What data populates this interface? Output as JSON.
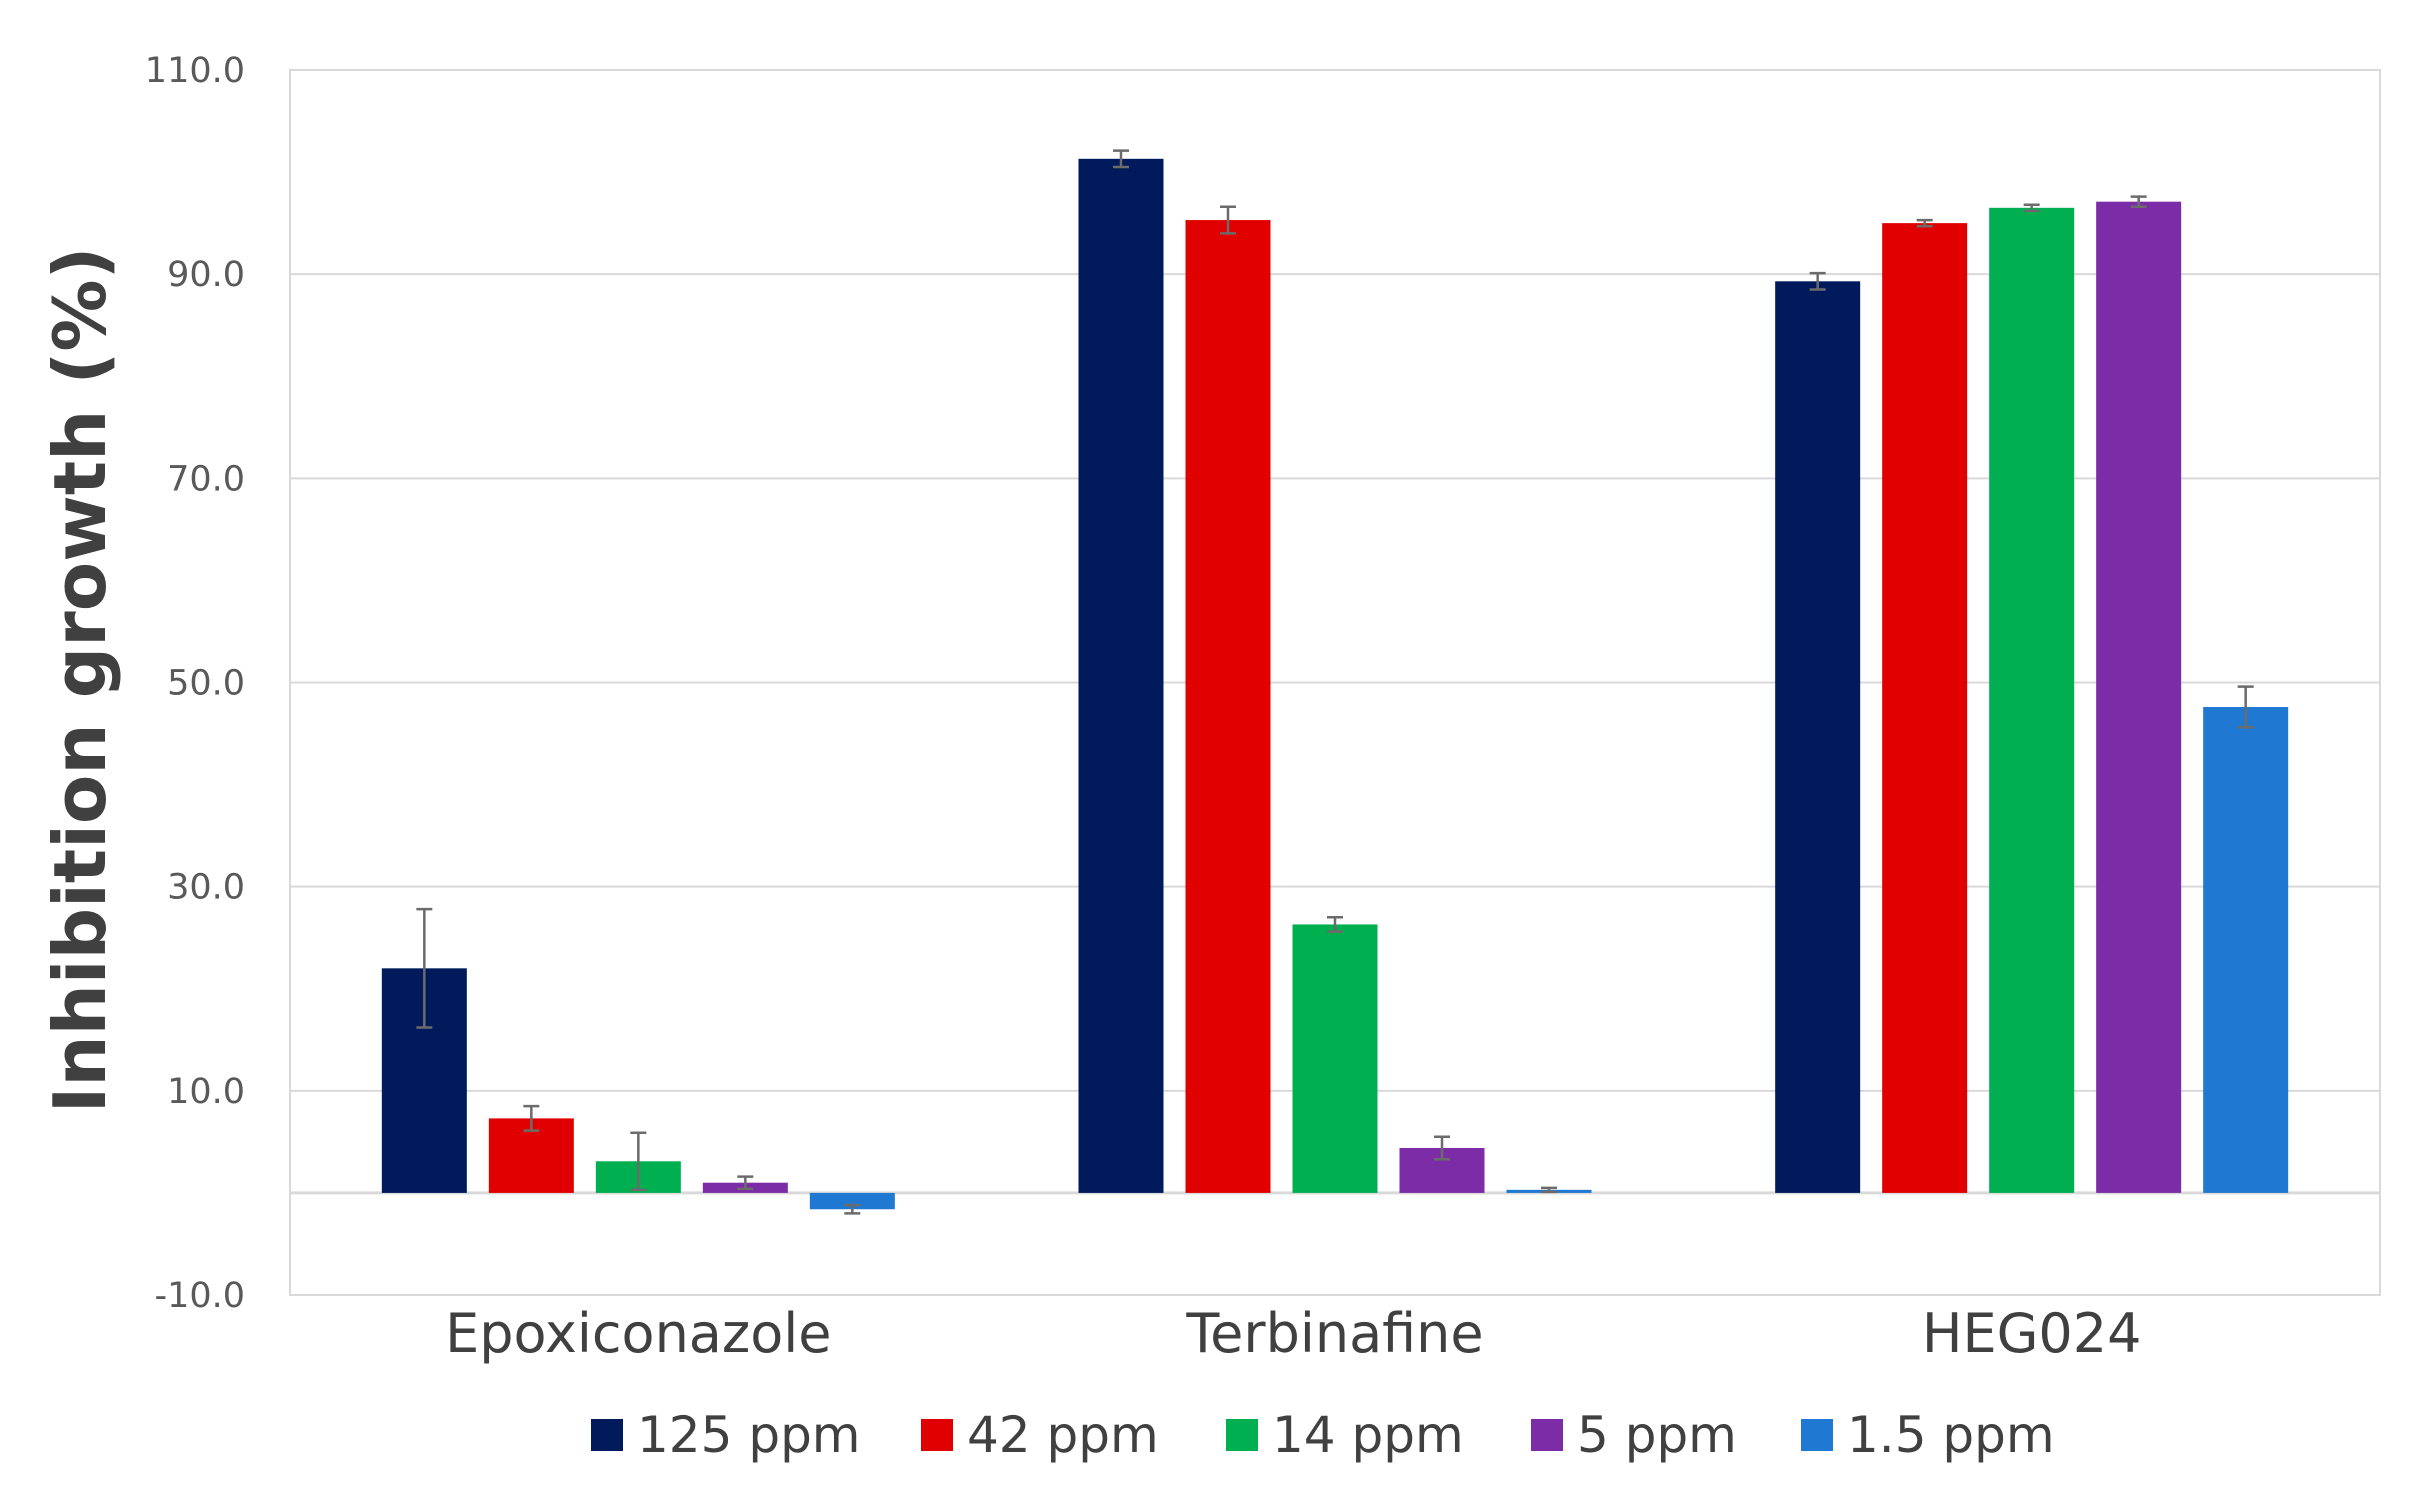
{
  "chart_data": {
    "type": "bar",
    "title": "",
    "xlabel": "",
    "ylabel": "Inhibition growth (%)",
    "ylim": [
      -10,
      110
    ],
    "yticks": [
      -10,
      10,
      30,
      50,
      70,
      90,
      110
    ],
    "ytick_labels": [
      "-10.0",
      "10.0",
      "30.0",
      "50.0",
      "70.0",
      "90.0",
      "110.0"
    ],
    "grid": true,
    "legend_position": "bottom",
    "categories": [
      "Epoxiconazole",
      "Terbinafine",
      "HEG024"
    ],
    "series": [
      {
        "name": "125 ppm",
        "color": "#001a5c",
        "values": [
          22.0,
          101.3,
          89.3
        ],
        "errors": [
          5.8,
          0.8,
          0.8
        ]
      },
      {
        "name": "42 ppm",
        "color": "#e00000",
        "values": [
          7.3,
          95.3,
          95.0
        ],
        "errors": [
          1.2,
          1.3,
          0.3
        ]
      },
      {
        "name": "14 ppm",
        "color": "#00b050",
        "values": [
          3.1,
          26.3,
          96.5
        ],
        "errors": [
          2.8,
          0.7,
          0.3
        ]
      },
      {
        "name": "5 ppm",
        "color": "#7b2ca6",
        "values": [
          1.0,
          4.4,
          97.1
        ],
        "errors": [
          0.6,
          1.1,
          0.5
        ]
      },
      {
        "name": "1.5 ppm",
        "color": "#1f78d1",
        "values": [
          -1.6,
          0.3,
          47.6
        ],
        "errors": [
          0.4,
          0.2,
          2.0
        ]
      }
    ]
  }
}
